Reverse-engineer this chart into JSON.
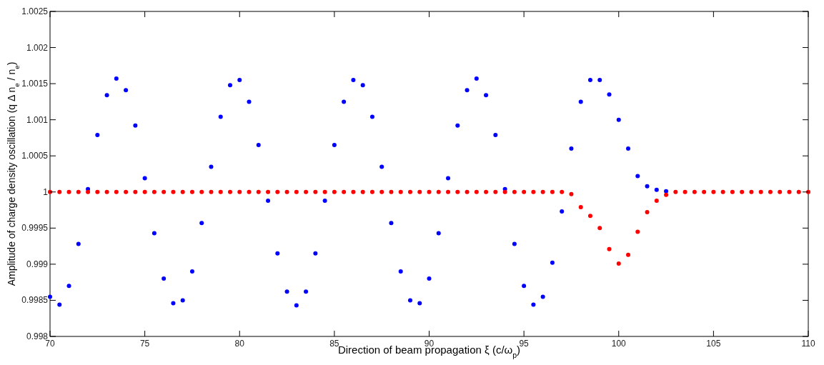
{
  "chart_data": {
    "type": "scatter",
    "xlabel": "Direction of beam propagation ξ (c/ω$_{p}$)",
    "ylabel": "Amplitude of charge density oscillation (q Δ n$_{e}$ / n$_{e}$)",
    "xlim": [
      70,
      110
    ],
    "ylim": [
      0.998,
      1.0025
    ],
    "xticks": [
      70,
      75,
      80,
      85,
      90,
      95,
      100,
      105,
      110
    ],
    "yticks": [
      0.998,
      0.9985,
      0.999,
      0.9995,
      1,
      1.0005,
      1.001,
      1.0015,
      1.002,
      1.0025
    ],
    "marker": "circle",
    "series": [
      {
        "color": "#0000ff",
        "x": [
          70,
          70.5,
          71,
          71.5,
          72,
          72.5,
          73,
          73.5,
          74,
          74.5,
          75,
          75.5,
          76,
          76.5,
          77,
          77.5,
          78,
          78.5,
          79,
          79.5,
          80,
          80.5,
          81,
          81.5,
          82,
          82.5,
          83,
          83.5,
          84,
          84.5,
          85,
          85.5,
          86,
          86.5,
          87,
          87.5,
          88,
          88.5,
          89,
          89.5,
          90,
          90.5,
          91,
          91.5,
          92,
          92.5,
          93,
          93.5,
          94,
          94.5,
          95,
          95.5,
          96,
          96.5,
          97,
          97.5,
          98,
          98.5,
          99,
          99.5,
          100,
          100.5,
          101,
          101.5,
          102,
          102.5
        ],
        "values": [
          0.99855,
          0.99844,
          0.9987,
          0.99928,
          1.00004,
          1.00079,
          1.00134,
          1.00157,
          1.00141,
          1.00092,
          1.00019,
          0.99943,
          0.9988,
          0.99846,
          0.9985,
          0.9989,
          0.99957,
          1.00035,
          1.00104,
          1.00148,
          1.00155,
          1.00125,
          1.00065,
          0.99988,
          0.99915,
          0.99862,
          0.99843,
          0.99862,
          0.99915,
          0.99988,
          1.00065,
          1.00125,
          1.00155,
          1.00148,
          1.00104,
          1.00035,
          0.99957,
          0.9989,
          0.9985,
          0.99846,
          0.9988,
          0.99943,
          1.00019,
          1.00092,
          1.00141,
          1.00157,
          1.00134,
          1.00079,
          1.00004,
          0.99928,
          0.9987,
          0.99844,
          0.99855,
          0.99902,
          0.99973,
          1.0006,
          1.00125,
          1.00155,
          1.00155,
          1.00135,
          1.001,
          1.0006,
          1.00022,
          1.00008,
          1.00003,
          1.00001
        ]
      },
      {
        "color": "#ff0000",
        "x": [
          70,
          70.5,
          71,
          71.5,
          72,
          72.5,
          73,
          73.5,
          74,
          74.5,
          75,
          75.5,
          76,
          76.5,
          77,
          77.5,
          78,
          78.5,
          79,
          79.5,
          80,
          80.5,
          81,
          81.5,
          82,
          82.5,
          83,
          83.5,
          84,
          84.5,
          85,
          85.5,
          86,
          86.5,
          87,
          87.5,
          88,
          88.5,
          89,
          89.5,
          90,
          90.5,
          91,
          91.5,
          92,
          92.5,
          93,
          93.5,
          94,
          94.5,
          95,
          95.5,
          96,
          96.5,
          97,
          97.5,
          98,
          98.5,
          99,
          99.5,
          100,
          100.5,
          101,
          101.5,
          102,
          102.5,
          103,
          103.5,
          104,
          104.5,
          105,
          105.5,
          106,
          106.5,
          107,
          107.5,
          108,
          108.5,
          109,
          109.5,
          110
        ],
        "values": [
          1,
          1,
          1,
          1,
          1,
          1,
          1,
          1,
          1,
          1,
          1,
          1,
          1,
          1,
          1,
          1,
          1,
          1,
          1,
          1,
          1,
          1,
          1,
          1,
          1,
          1,
          1,
          1,
          1,
          1,
          1,
          1,
          1,
          1,
          1,
          1,
          1,
          1,
          1,
          1,
          1,
          1,
          1,
          1,
          1,
          1,
          1,
          1,
          1,
          1,
          1,
          1,
          1,
          1,
          1,
          0.99997,
          0.99979,
          0.99967,
          0.9995,
          0.99921,
          0.99901,
          0.99913,
          0.99945,
          0.99972,
          0.99988,
          0.99996,
          1,
          1,
          1,
          1,
          1,
          1,
          1,
          1,
          1,
          1,
          1,
          1,
          1,
          1,
          1
        ]
      }
    ]
  }
}
